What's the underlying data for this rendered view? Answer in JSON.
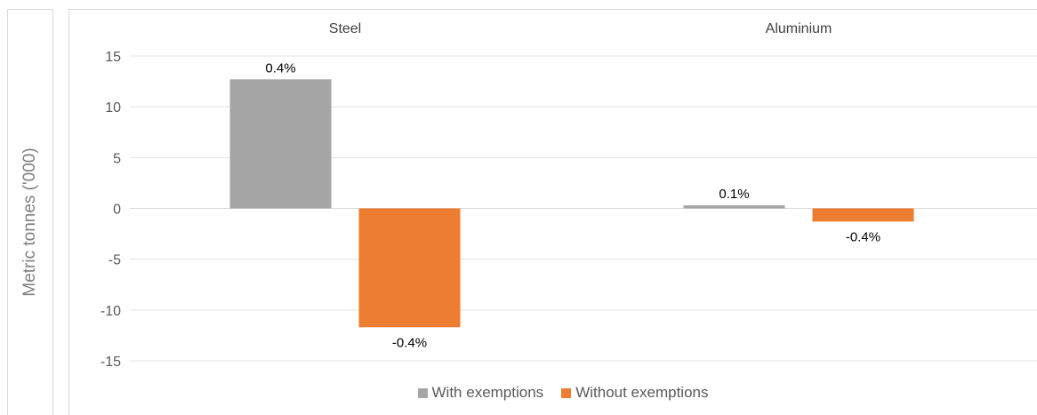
{
  "chart_data": {
    "type": "bar",
    "ylabel": "Metric tonnes ('000)",
    "ylim": [
      -15,
      15
    ],
    "yticks": [
      "15",
      "10",
      "5",
      "0",
      "-5",
      "-10",
      "-15"
    ],
    "categories": [
      "Steel",
      "Aluminium"
    ],
    "series": [
      {
        "name": "With exemptions",
        "color": "#a5a5a5",
        "values": [
          12.7,
          0.3
        ],
        "labels": [
          "0.4%",
          "0.1%"
        ]
      },
      {
        "name": "Without exemptions",
        "color": "#ed7d31",
        "values": [
          -11.7,
          -1.3
        ],
        "labels": [
          "-0.4%",
          "-0.4%"
        ]
      }
    ],
    "grid": true,
    "legend": "bottom"
  }
}
